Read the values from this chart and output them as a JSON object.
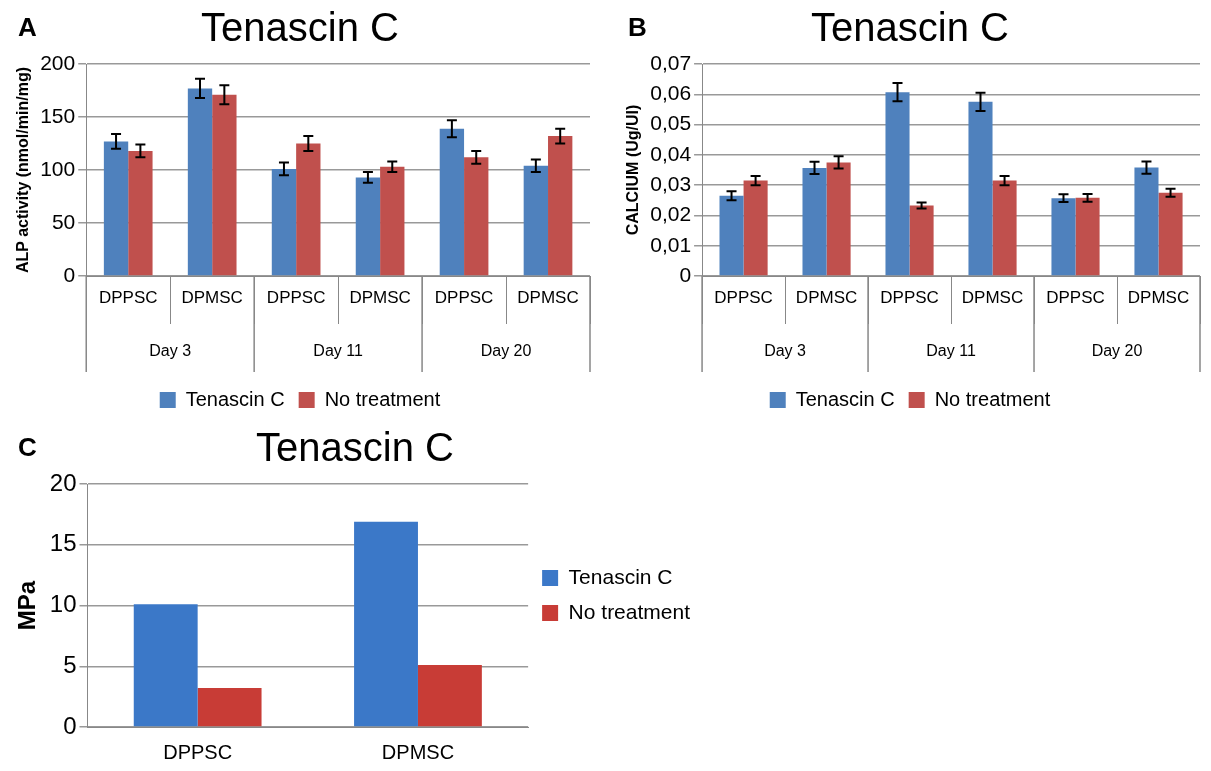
{
  "chart_data": [
    {
      "type": "bar",
      "title": "Tenascin C",
      "ylabel": "ALP activity (nmol/min/mg)",
      "categories": [
        "DPPSC",
        "DPMSC",
        "DPPSC",
        "DPMSC",
        "DPPSC",
        "DPMSC"
      ],
      "series": [
        {
          "name": "Tenascin C",
          "color": "#4f81bd",
          "values": [
            127,
            177,
            101,
            93,
            139,
            104
          ],
          "errors": [
            7,
            9,
            6,
            5,
            8,
            6
          ]
        },
        {
          "name": "No treatment",
          "color": "#c0504d",
          "values": [
            118,
            171,
            125,
            103,
            112,
            132
          ],
          "errors": [
            6,
            9,
            7,
            5,
            6,
            7
          ]
        }
      ],
      "ylim": [
        0,
        200
      ],
      "yticks": [
        0,
        50,
        100,
        150,
        200
      ],
      "grid": "y",
      "legend": "bottom",
      "annotations": [
        "A",
        "Day 3",
        "Day 11",
        "Day 20"
      ]
    },
    {
      "type": "bar",
      "title": "Tenascin C",
      "ylabel": "CALCIUM (Ug/UI)",
      "categories": [
        "DPPSC",
        "DPMSC",
        "DPPSC",
        "DPMSC",
        "DPPSC",
        "DPMSC"
      ],
      "series": [
        {
          "name": "Tenascin C",
          "color": "#4f81bd",
          "values": [
            0.0265,
            0.0357,
            0.0607,
            0.0575,
            0.0257,
            0.0358
          ],
          "errors": [
            0.0015,
            0.002,
            0.003,
            0.003,
            0.0013,
            0.002
          ]
        },
        {
          "name": "No treatment",
          "color": "#c0504d",
          "values": [
            0.0315,
            0.0375,
            0.0233,
            0.0315,
            0.0258,
            0.0275
          ],
          "errors": [
            0.0015,
            0.002,
            0.001,
            0.0015,
            0.0013,
            0.0013
          ]
        }
      ],
      "ylim": [
        0,
        0.07
      ],
      "yticks": [
        {
          "value": 0,
          "label": "0"
        },
        {
          "value": 0.01,
          "label": "0,01"
        },
        {
          "value": 0.02,
          "label": "0,02"
        },
        {
          "value": 0.03,
          "label": "0,03"
        },
        {
          "value": 0.04,
          "label": "0,04"
        },
        {
          "value": 0.05,
          "label": "0,05"
        },
        {
          "value": 0.06,
          "label": "0,06"
        },
        {
          "value": 0.07,
          "label": "0,07"
        }
      ],
      "grid": "y",
      "legend": "bottom",
      "annotations": [
        "B",
        "Day 3",
        "Day 11",
        "Day 20"
      ]
    },
    {
      "type": "bar",
      "title": "Tenascin C",
      "ylabel": "MPa",
      "categories": [
        "DPPSC",
        "DPMSC"
      ],
      "series": [
        {
          "name": "Tenascin C",
          "color": "#3b78c8",
          "values": [
            10.1,
            16.9
          ]
        },
        {
          "name": "No treatment",
          "color": "#c83c36",
          "values": [
            3.2,
            5.1
          ]
        }
      ],
      "ylim": [
        0,
        20
      ],
      "yticks": [
        0,
        5,
        10,
        15,
        20
      ],
      "grid": "y",
      "legend": "right",
      "annotations": [
        "C"
      ]
    }
  ]
}
